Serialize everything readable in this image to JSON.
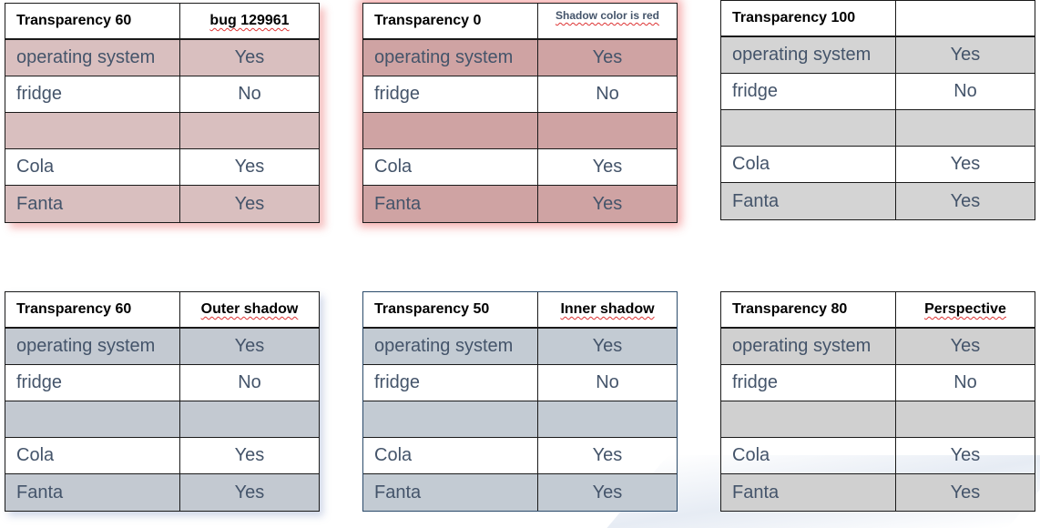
{
  "tables": [
    {
      "title": "Transparency 60",
      "subtitle": "bug 129961",
      "rows": [
        [
          "operating system",
          "Yes"
        ],
        [
          "fridge",
          "No"
        ],
        [
          "",
          ""
        ],
        [
          "Cola",
          "Yes"
        ],
        [
          "Fanta",
          "Yes"
        ]
      ]
    },
    {
      "title": "Transparency 0",
      "subtitle": "Shadow color is red",
      "rows": [
        [
          "operating system",
          "Yes"
        ],
        [
          "fridge",
          "No"
        ],
        [
          "",
          ""
        ],
        [
          "Cola",
          "Yes"
        ],
        [
          "Fanta",
          "Yes"
        ]
      ]
    },
    {
      "title": "Transparency 100",
      "subtitle": "",
      "rows": [
        [
          "operating system",
          "Yes"
        ],
        [
          "fridge",
          "No"
        ],
        [
          "",
          ""
        ],
        [
          "Cola",
          "Yes"
        ],
        [
          "Fanta",
          "Yes"
        ]
      ]
    },
    {
      "title": "Transparency 60",
      "subtitle": "Outer shadow",
      "rows": [
        [
          "operating system",
          "Yes"
        ],
        [
          "fridge",
          "No"
        ],
        [
          "",
          ""
        ],
        [
          "Cola",
          "Yes"
        ],
        [
          "Fanta",
          "Yes"
        ]
      ]
    },
    {
      "title": "Transparency 50",
      "subtitle": "Inner shadow",
      "rows": [
        [
          "operating system",
          "Yes"
        ],
        [
          "fridge",
          "No"
        ],
        [
          "",
          ""
        ],
        [
          "Cola",
          "Yes"
        ],
        [
          "Fanta",
          "Yes"
        ]
      ]
    },
    {
      "title": "Transparency 80",
      "subtitle": "Perspective",
      "rows": [
        [
          "operating system",
          "Yes"
        ],
        [
          "fridge",
          "No"
        ],
        [
          "",
          ""
        ],
        [
          "Cola",
          "Yes"
        ],
        [
          "Fanta",
          "Yes"
        ]
      ]
    }
  ]
}
